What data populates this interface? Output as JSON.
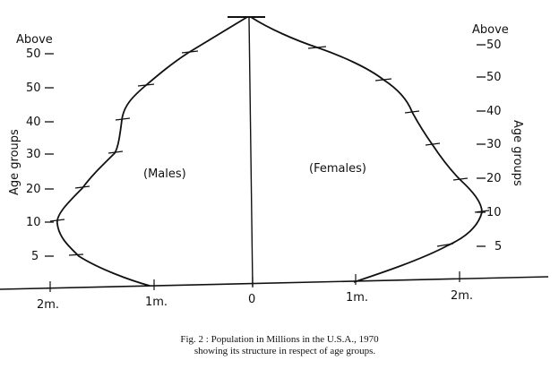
{
  "left_axis": {
    "title": "Age groups",
    "top_label": "Above",
    "tick_labels": [
      "50",
      "50",
      "40",
      "30",
      "20",
      "10",
      "5"
    ]
  },
  "right_axis": {
    "title": "Age groups",
    "top_label": "Above",
    "tick_labels": [
      "50",
      "50",
      "40",
      "30",
      "20",
      "10",
      "5"
    ]
  },
  "x_axis": {
    "tick_labels": [
      "2m.",
      "1m.",
      "0",
      "1m.",
      "2m."
    ]
  },
  "region_labels": {
    "males": "(Males)",
    "females": "(Females)"
  },
  "caption": {
    "line1": "Fig. 2 : Population in Millions in the U.S.A., 1970",
    "line2": "showing its structure in respect of age groups."
  }
}
